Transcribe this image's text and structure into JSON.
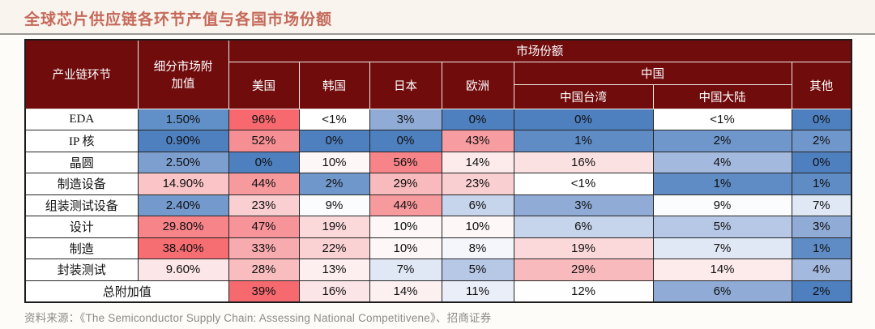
{
  "page": {
    "title": "全球芯片供应链各环节产值与各国市场份额",
    "source": "资料来源：《The Semiconductor Supply Chain: Assessing National Competitivene》、招商证券"
  },
  "colors": {
    "title": "#c4695a",
    "header_bg": "#710c0d",
    "scale_low_blue": "#4e7fbe",
    "scale_mid_white": "#ffffff",
    "scale_high_red": "#f7696e",
    "source_text": "#8b8b88"
  },
  "table": {
    "header": {
      "industry": "产业链环节",
      "value_added": "细分市场附\n加值",
      "market_share": "市场份额",
      "us": "美国",
      "kr": "韩国",
      "jp": "日本",
      "eu": "欧洲",
      "china": "中国",
      "taiwan": "中国台湾",
      "mainland": "中国大陆",
      "others": "其他"
    }
  },
  "chart_data": {
    "type": "heatmap",
    "title": "全球芯片供应链各环节产值与各国市场份额",
    "row_header": "产业链环节",
    "columns": [
      "细分市场附加值",
      "美国",
      "韩国",
      "日本",
      "欧洲",
      "中国台湾",
      "中国大陆",
      "其他"
    ],
    "column_groups": {
      "市场份额": [
        "美国",
        "韩国",
        "日本",
        "欧洲",
        "中国",
        "其他"
      ],
      "中国": [
        "中国台湾",
        "中国大陆"
      ]
    },
    "color_scale": {
      "low": "#4e7fbe",
      "mid": "#ffffff",
      "high": "#f7696e",
      "note": "blue = low share, white = mid, red = high share; <1% text cells unfilled"
    },
    "rows": [
      {
        "label": "EDA",
        "total": false,
        "cells": [
          {
            "t": "1.50%",
            "bg": "#6190c8"
          },
          {
            "t": "96%",
            "bg": "#f7696e"
          },
          {
            "t": "<1%",
            "bg": "#ffffff"
          },
          {
            "t": "3%",
            "bg": "#8fabd6"
          },
          {
            "t": "0%",
            "bg": "#4e7fbe"
          },
          {
            "t": "0%",
            "bg": "#4e7fbe"
          },
          {
            "t": "<1%",
            "bg": "#ffffff"
          },
          {
            "t": "0%",
            "bg": "#4e7fbe"
          }
        ]
      },
      {
        "label": "IP 核",
        "total": false,
        "cells": [
          {
            "t": "0.90%",
            "bg": "#4e7fbe"
          },
          {
            "t": "52%",
            "bg": "#f68f94"
          },
          {
            "t": "0%",
            "bg": "#4e7fbe"
          },
          {
            "t": "0%",
            "bg": "#4e7fbe"
          },
          {
            "t": "43%",
            "bg": "#f79da1"
          },
          {
            "t": "1%",
            "bg": "#5f8cc5"
          },
          {
            "t": "2%",
            "bg": "#7097cb"
          },
          {
            "t": "2%",
            "bg": "#7097cb"
          }
        ]
      },
      {
        "label": "晶圆",
        "total": false,
        "cells": [
          {
            "t": "2.50%",
            "bg": "#7c9fd0"
          },
          {
            "t": "0%",
            "bg": "#4e7fbe"
          },
          {
            "t": "10%",
            "bg": "#fdf7f7"
          },
          {
            "t": "56%",
            "bg": "#f68489"
          },
          {
            "t": "14%",
            "bg": "#fdebec"
          },
          {
            "t": "16%",
            "bg": "#fce1e2"
          },
          {
            "t": "4%",
            "bg": "#a3b9de"
          },
          {
            "t": "0%",
            "bg": "#4e7fbe"
          }
        ]
      },
      {
        "label": "制造设备",
        "total": false,
        "cells": [
          {
            "t": "14.90%",
            "bg": "#fbc5c7"
          },
          {
            "t": "44%",
            "bg": "#f79a9e"
          },
          {
            "t": "2%",
            "bg": "#7097cb"
          },
          {
            "t": "29%",
            "bg": "#f8babd"
          },
          {
            "t": "23%",
            "bg": "#facfd1"
          },
          {
            "t": "<1%",
            "bg": "#ffffff"
          },
          {
            "t": "1%",
            "bg": "#5f8cc5"
          },
          {
            "t": "1%",
            "bg": "#5f8cc5"
          }
        ]
      },
      {
        "label": "组装测试设备",
        "total": false,
        "cells": [
          {
            "t": "2.40%",
            "bg": "#7399cd"
          },
          {
            "t": "23%",
            "bg": "#facfd1"
          },
          {
            "t": "9%",
            "bg": "#fbfcfd"
          },
          {
            "t": "44%",
            "bg": "#f79a9e"
          },
          {
            "t": "6%",
            "bg": "#c6d4ec"
          },
          {
            "t": "3%",
            "bg": "#8fabd6"
          },
          {
            "t": "9%",
            "bg": "#fbfcfd"
          },
          {
            "t": "7%",
            "bg": "#e0e8f5"
          }
        ]
      },
      {
        "label": "设计",
        "total": false,
        "cells": [
          {
            "t": "29.80%",
            "bg": "#f68489"
          },
          {
            "t": "47%",
            "bg": "#f7949a"
          },
          {
            "t": "19%",
            "bg": "#fbd9db"
          },
          {
            "t": "10%",
            "bg": "#fdf7f7"
          },
          {
            "t": "10%",
            "bg": "#fdf7f7"
          },
          {
            "t": "6%",
            "bg": "#c6d4ec"
          },
          {
            "t": "5%",
            "bg": "#b7c8e6"
          },
          {
            "t": "3%",
            "bg": "#8fabd6"
          }
        ]
      },
      {
        "label": "制造",
        "total": false,
        "cells": [
          {
            "t": "38.40%",
            "bg": "#f66d72"
          },
          {
            "t": "33%",
            "bg": "#f8abae"
          },
          {
            "t": "22%",
            "bg": "#fad2d4"
          },
          {
            "t": "10%",
            "bg": "#fdf7f7"
          },
          {
            "t": "8%",
            "bg": "#f4f6fb"
          },
          {
            "t": "19%",
            "bg": "#fbd9db"
          },
          {
            "t": "7%",
            "bg": "#e0e8f5"
          },
          {
            "t": "1%",
            "bg": "#5f8cc5"
          }
        ]
      },
      {
        "label": "封装测试",
        "total": false,
        "cells": [
          {
            "t": "9.60%",
            "bg": "#fde6e7"
          },
          {
            "t": "28%",
            "bg": "#f9bdc0"
          },
          {
            "t": "13%",
            "bg": "#fdeff0"
          },
          {
            "t": "7%",
            "bg": "#e0e8f5"
          },
          {
            "t": "5%",
            "bg": "#b7c8e6"
          },
          {
            "t": "29%",
            "bg": "#f8babd"
          },
          {
            "t": "14%",
            "bg": "#fdebec"
          },
          {
            "t": "4%",
            "bg": "#a3b9de"
          }
        ]
      },
      {
        "label": "总附加值",
        "total": true,
        "cells": [
          {
            "t": "39%",
            "bg": "#f5696f"
          },
          {
            "t": "16%",
            "bg": "#fce5e6"
          },
          {
            "t": "14%",
            "bg": "#fdf0f1"
          },
          {
            "t": "11%",
            "bg": "#e9eef8"
          },
          {
            "t": "12%",
            "bg": "#fefefe"
          },
          {
            "t": "6%",
            "bg": "#8fabd6"
          },
          {
            "t": "2%",
            "bg": "#4e7fbe"
          }
        ]
      }
    ]
  }
}
